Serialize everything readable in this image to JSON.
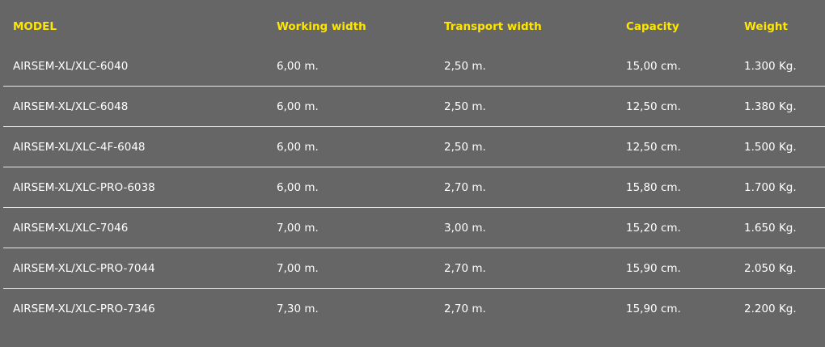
{
  "colors": {
    "background": "#666666",
    "header_text": "#ffe600",
    "cell_text": "#ffffff"
  },
  "table": {
    "headers": [
      "MODEL",
      "Working width",
      "Transport width",
      "Capacity",
      "Weight"
    ],
    "rows": [
      [
        "AIRSEM-XL/XLC-6040",
        "6,00 m.",
        "2,50 m.",
        "15,00 cm.",
        "1.300 Kg."
      ],
      [
        "AIRSEM-XL/XLC-6048",
        "6,00 m.",
        "2,50 m.",
        "12,50 cm.",
        "1.380 Kg."
      ],
      [
        "AIRSEM-XL/XLC-4F-6048",
        "6,00 m.",
        "2,50 m.",
        "12,50 cm.",
        "1.500 Kg."
      ],
      [
        "AIRSEM-XL/XLC-PRO-6038",
        "6,00 m.",
        "2,70 m.",
        "15,80 cm.",
        "1.700 Kg."
      ],
      [
        "AIRSEM-XL/XLC-7046",
        "7,00 m.",
        "3,00 m.",
        "15,20 cm.",
        "1.650 Kg."
      ],
      [
        "AIRSEM-XL/XLC-PRO-7044",
        "7,00 m.",
        "2,70 m.",
        "15,90 cm.",
        "2.050 Kg."
      ],
      [
        "AIRSEM-XL/XLC-PRO-7346",
        "7,30 m.",
        "2,70 m.",
        "15,90 cm.",
        "2.200 Kg."
      ]
    ]
  }
}
